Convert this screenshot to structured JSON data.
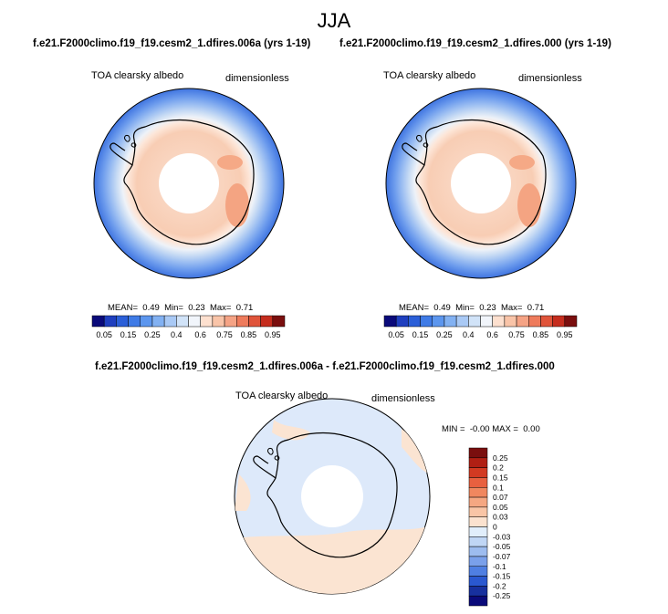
{
  "figure": {
    "season": "JJA",
    "panel_left_title": "f.e21.F2000climo.f19_f19.cesm2_1.dfires.006a (yrs 1-19)",
    "panel_right_title": "f.e21.F2000climo.f19_f19.cesm2_1.dfires.000 (yrs 1-19)",
    "diff_title": "f.e21.F2000climo.f19_f19.cesm2_1.dfires.006a - f.e21.F2000climo.f19_f19.cesm2_1.dfires.000"
  },
  "panels": [
    {
      "variable": "TOA clearsky albedo",
      "units": "dimensionless",
      "stats": {
        "mean_label": "MEAN=",
        "mean": "0.49",
        "min_label": "Min=",
        "min": "0.23",
        "max_label": "Max=",
        "max": "0.71"
      }
    },
    {
      "variable": "TOA clearsky albedo",
      "units": "dimensionless",
      "stats": {
        "mean_label": "MEAN=",
        "mean": "0.49",
        "min_label": "Min=",
        "min": "0.23",
        "max_label": "Max=",
        "max": "0.71"
      }
    }
  ],
  "diff_panel": {
    "variable": "TOA clearsky albedo",
    "units": "dimensionless",
    "stats": {
      "min_label": "MIN =",
      "min": "-0.00",
      "max_label": "MAX =",
      "max": "0.00"
    }
  },
  "colorbar_main": {
    "colors": [
      "#0a0a7a",
      "#1f3fbf",
      "#2b5fd8",
      "#3f7be6",
      "#5c96ee",
      "#82b1f2",
      "#a9c9f5",
      "#d1e3f8",
      "#f1f5fb",
      "#fde0cf",
      "#f9c4a8",
      "#f5a385",
      "#ee7b5c",
      "#e0543a",
      "#c52d1e",
      "#7a0e0e"
    ],
    "tick_labels": [
      "0.05",
      "0.15",
      "0.25",
      "0.4",
      "0.6",
      "0.75",
      "0.85",
      "0.95"
    ]
  },
  "colorbar_diff": {
    "colors": [
      "#7a0e0e",
      "#b01f14",
      "#d23a22",
      "#e8603f",
      "#f0875f",
      "#f5a782",
      "#f9c5a6",
      "#fbe2cf",
      "#e1eefb",
      "#c0d6f5",
      "#9dbcef",
      "#7aa0ea",
      "#4f7fe2",
      "#2a58d0",
      "#17309e",
      "#0a0a7a"
    ],
    "tick_labels": [
      "0.25",
      "0.2",
      "0.15",
      "0.1",
      "0.07",
      "0.05",
      "0.03",
      "0",
      "-0.03",
      "-0.05",
      "-0.07",
      "-0.1",
      "-0.15",
      "-0.2",
      "-0.25"
    ]
  }
}
